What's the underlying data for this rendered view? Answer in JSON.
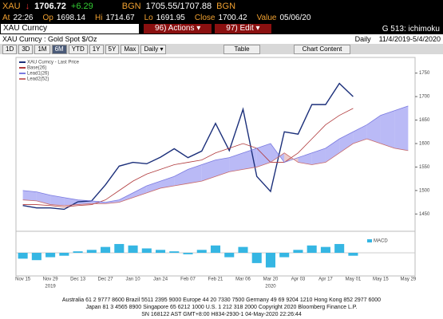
{
  "header": {
    "ticker": "XAU",
    "arrow": "↓",
    "last": "1706.72",
    "change": "+6.29",
    "bid_source": "BGN",
    "bid_ask": "1705.55/1707.88",
    "ask_source": "BGN",
    "at_label": "At",
    "time": "22:26",
    "op_label": "Op",
    "op": "1698.14",
    "hi_label": "Hi",
    "hi": "1714.67",
    "lo_label": "Lo",
    "lo": "1691.95",
    "close_label": "Close",
    "close": "1700.42",
    "value_label": "Value",
    "value_date": "05/06/20"
  },
  "command": {
    "input": "XAU Curncy",
    "actions": "96) Actions ▾",
    "edit": "97) Edit ▾",
    "page": "G 513: ichimoku"
  },
  "subheader": {
    "security": "XAU Curncy : Gold Spot  $/Oz",
    "frequency": "Daily",
    "range": "11/4/2019-5/4/2020"
  },
  "toolbar": {
    "periods": [
      "1D",
      "3D",
      "1M",
      "6M",
      "YTD",
      "1Y",
      "5Y",
      "Max"
    ],
    "interval": "Daily ▾",
    "table": "Table",
    "chart_content": "Chart Content"
  },
  "chart_data": [
    {
      "type": "line",
      "cloud": true,
      "series": [
        {
          "name": "XAU Curncy - Last Price",
          "color": "#1b2f7a",
          "values": [
            1468,
            1463,
            1463,
            1460,
            1476,
            1478,
            1512,
            1552,
            1560,
            1557,
            1571,
            1589,
            1570,
            1584,
            1643,
            1585,
            1673,
            1530,
            1498,
            1625,
            1620,
            1683,
            1683,
            1728,
            1700,
            null,
            null,
            null,
            null
          ]
        },
        {
          "name": "Base(26)",
          "color": "#b0393b",
          "values": [
            1470,
            1470,
            1468,
            1465,
            1468,
            1470,
            1480,
            1500,
            1520,
            1535,
            1545,
            1555,
            1560,
            1565,
            1580,
            1590,
            1600,
            1590,
            1560,
            1560,
            1580,
            1610,
            1640,
            1660,
            1675,
            null,
            null,
            null,
            null
          ]
        },
        {
          "name": "Lead1(26)",
          "color": "#7a7ae0",
          "values": [
            1500,
            1497,
            1490,
            1485,
            1480,
            1478,
            1475,
            1480,
            1495,
            1510,
            1520,
            1530,
            1545,
            1555,
            1565,
            1570,
            1580,
            1590,
            1600,
            1560,
            1570,
            1580,
            1590,
            1610,
            1625,
            1640,
            1660,
            1670,
            1680
          ]
        },
        {
          "name": "Lead2(52)",
          "color": "#c96a6a",
          "values": [
            1480,
            1478,
            1470,
            1468,
            1470,
            1472,
            1472,
            1475,
            1485,
            1495,
            1505,
            1510,
            1515,
            1520,
            1530,
            1540,
            1545,
            1550,
            1560,
            1580,
            1560,
            1555,
            1560,
            1580,
            1600,
            1610,
            1600,
            1590,
            1585
          ]
        }
      ],
      "ylim": [
        1420,
        1780
      ],
      "yticks": [
        1450,
        1500,
        1550,
        1600,
        1650,
        1700,
        1750
      ],
      "grid": false
    },
    {
      "type": "bar",
      "categories": [
        "Nov 15",
        null,
        "Nov 29",
        null,
        "Dec 13",
        null,
        "Dec 27",
        null,
        "Jan 10",
        null,
        "Jan 24",
        null,
        "Feb 07",
        null,
        "Feb 21",
        null,
        "Mar 06",
        null,
        "Mar 20",
        null,
        "Apr 03",
        null,
        "Apr 17",
        null,
        "May 01",
        null,
        "May 15",
        null,
        "May 29"
      ],
      "years": [
        "2019",
        "2020"
      ],
      "series": [
        {
          "name": "MACD",
          "color": "#35b6e3",
          "values": [
            -8,
            -10,
            -6,
            -4,
            2,
            4,
            8,
            12,
            10,
            6,
            4,
            2,
            -2,
            4,
            10,
            -6,
            8,
            -14,
            -20,
            -6,
            4,
            10,
            8,
            12,
            -4,
            null,
            null,
            null,
            null
          ]
        }
      ],
      "ylim": [
        -25,
        25
      ]
    }
  ],
  "footer": {
    "lines": [
      "Australia 61 2 9777 8600 Brazil 5511 2395 9000 Europe 44 20 7330 7500 Germany 49 69 9204 1210 Hong Kong 852 2977 6000",
      "Japan 81 3 4565 8900 Singapore 65 6212 1000 U.S. 1 212 318 2000 Copyright 2020 Bloomberg Finance L.P.",
      "SN 168122 AST GMT+8:00 H834-2930-1 04-May-2020 22:26:44"
    ]
  }
}
